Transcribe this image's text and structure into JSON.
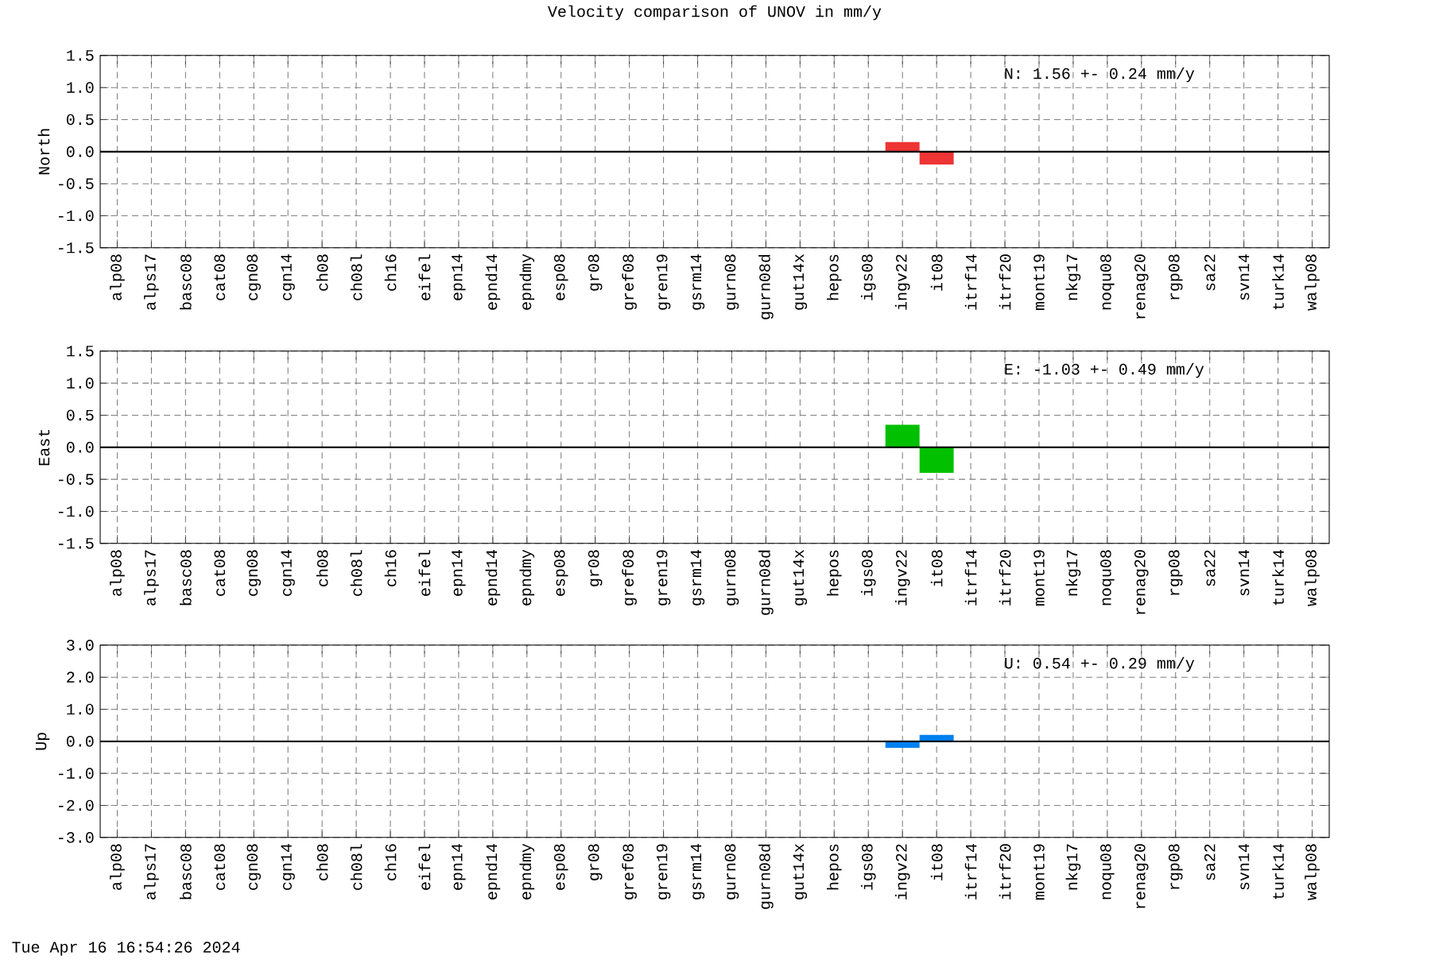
{
  "chart_data": [
    {
      "type": "bar",
      "title": "Velocity comparison of UNOV in mm/y",
      "ylabel": "North",
      "categories": [
        "alp08",
        "alps17",
        "basc08",
        "cat08",
        "cgn08",
        "cgn14",
        "ch08",
        "ch08l",
        "ch16",
        "eifel",
        "epn14",
        "epnd14",
        "epndmy",
        "esp08",
        "gr08",
        "gref08",
        "gren19",
        "gsrm14",
        "gurn08",
        "gurn08d",
        "gut14x",
        "hepos",
        "igs08",
        "ingv22",
        "it08",
        "itrf14",
        "itrf20",
        "mont19",
        "nkg17",
        "noqu08",
        "renag20",
        "rgp08",
        "sa22",
        "svn14",
        "turk14",
        "walp08"
      ],
      "values": [
        null,
        null,
        null,
        null,
        null,
        null,
        null,
        null,
        null,
        null,
        null,
        null,
        null,
        null,
        null,
        null,
        null,
        null,
        null,
        null,
        null,
        null,
        null,
        0.15,
        -0.2,
        null,
        null,
        null,
        null,
        null,
        null,
        null,
        null,
        null,
        null,
        null
      ],
      "color": "#ef3434",
      "ylim": [
        -1.5,
        1.5
      ],
      "yticks": [
        {
          "value": -1.5,
          "label": "-1.5"
        },
        {
          "value": -1.0,
          "label": "-1.0"
        },
        {
          "value": -0.5,
          "label": "-0.5"
        },
        {
          "value": 0,
          "label": "0.0"
        },
        {
          "value": 0.5,
          "label": "0.5"
        },
        {
          "value": 1.0,
          "label": "1.0"
        },
        {
          "value": 1.5,
          "label": "1.5"
        }
      ],
      "grid": true,
      "ref_lines": [
        {
          "axis": "y",
          "value": 0,
          "color": "#000000"
        }
      ],
      "annotations": [
        "N: 1.56 +- 0.24 mm/y"
      ]
    },
    {
      "type": "bar",
      "ylabel": "East",
      "categories": [
        "alp08",
        "alps17",
        "basc08",
        "cat08",
        "cgn08",
        "cgn14",
        "ch08",
        "ch08l",
        "ch16",
        "eifel",
        "epn14",
        "epnd14",
        "epndmy",
        "esp08",
        "gr08",
        "gref08",
        "gren19",
        "gsrm14",
        "gurn08",
        "gurn08d",
        "gut14x",
        "hepos",
        "igs08",
        "ingv22",
        "it08",
        "itrf14",
        "itrf20",
        "mont19",
        "nkg17",
        "noqu08",
        "renag20",
        "rgp08",
        "sa22",
        "svn14",
        "turk14",
        "walp08"
      ],
      "values": [
        null,
        null,
        null,
        null,
        null,
        null,
        null,
        null,
        null,
        null,
        null,
        null,
        null,
        null,
        null,
        null,
        null,
        null,
        null,
        null,
        null,
        null,
        null,
        0.35,
        -0.4,
        null,
        null,
        null,
        null,
        null,
        null,
        null,
        null,
        null,
        null,
        null
      ],
      "color": "#00c000",
      "ylim": [
        -1.5,
        1.5
      ],
      "yticks": [
        {
          "value": -1.5,
          "label": "-1.5"
        },
        {
          "value": -1.0,
          "label": "-1.0"
        },
        {
          "value": -0.5,
          "label": "-0.5"
        },
        {
          "value": 0,
          "label": "0.0"
        },
        {
          "value": 0.5,
          "label": "0.5"
        },
        {
          "value": 1.0,
          "label": "1.0"
        },
        {
          "value": 1.5,
          "label": "1.5"
        }
      ],
      "grid": true,
      "ref_lines": [
        {
          "axis": "y",
          "value": 0,
          "color": "#000000"
        }
      ],
      "annotations": [
        "E: -1.03 +- 0.49 mm/y"
      ]
    },
    {
      "type": "bar",
      "ylabel": "Up",
      "categories": [
        "alp08",
        "alps17",
        "basc08",
        "cat08",
        "cgn08",
        "cgn14",
        "ch08",
        "ch08l",
        "ch16",
        "eifel",
        "epn14",
        "epnd14",
        "epndmy",
        "esp08",
        "gr08",
        "gref08",
        "gren19",
        "gsrm14",
        "gurn08",
        "gurn08d",
        "gut14x",
        "hepos",
        "igs08",
        "ingv22",
        "it08",
        "itrf14",
        "itrf20",
        "mont19",
        "nkg17",
        "noqu08",
        "renag20",
        "rgp08",
        "sa22",
        "svn14",
        "turk14",
        "walp08"
      ],
      "values": [
        null,
        null,
        null,
        null,
        null,
        null,
        null,
        null,
        null,
        null,
        null,
        null,
        null,
        null,
        null,
        null,
        null,
        null,
        null,
        null,
        null,
        null,
        null,
        -0.2,
        0.2,
        null,
        null,
        null,
        null,
        null,
        null,
        null,
        null,
        null,
        null,
        null
      ],
      "color": "#0080f0",
      "ylim": [
        -3.0,
        3.0
      ],
      "yticks": [
        {
          "value": -3.0,
          "label": "-3.0"
        },
        {
          "value": -2.0,
          "label": "-2.0"
        },
        {
          "value": -1.0,
          "label": "-1.0"
        },
        {
          "value": 0,
          "label": "0.0"
        },
        {
          "value": 1.0,
          "label": "1.0"
        },
        {
          "value": 2.0,
          "label": "2.0"
        },
        {
          "value": 3.0,
          "label": "3.0"
        }
      ],
      "grid": true,
      "ref_lines": [
        {
          "axis": "y",
          "value": 0,
          "color": "#000000"
        }
      ],
      "annotations": [
        "U: 0.54 +- 0.29 mm/y",
        "Tue Apr 16 16:54:26 2024"
      ]
    }
  ]
}
